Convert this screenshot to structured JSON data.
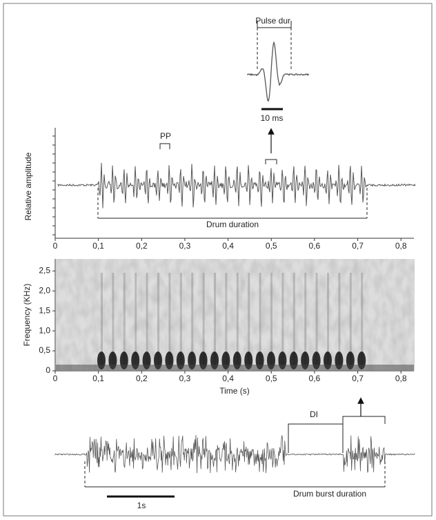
{
  "pulse": {
    "label": "Pulse dur.",
    "scale_label": "10 ms"
  },
  "waveform": {
    "y_label": "Relative amplitude",
    "pp_label": "PP",
    "duration_label": "Drum duration",
    "xlim": [
      0,
      0.83
    ],
    "xticks": [
      0,
      {
        "value": 0.1,
        "label": "0,1"
      },
      {
        "value": 0.2,
        "label": "0,2"
      },
      {
        "value": 0.3,
        "label": "0,3"
      },
      {
        "value": 0.4,
        "label": "0,4"
      },
      {
        "value": 0.5,
        "label": "0,5"
      },
      {
        "value": 0.6,
        "label": "0,6"
      },
      {
        "value": 0.7,
        "label": "0,7"
      },
      {
        "value": 0.8,
        "label": "0,8"
      }
    ]
  },
  "spectrogram": {
    "y_label": "Frequency (KHz)",
    "x_label": "Time (s)",
    "xlim": [
      0,
      0.83
    ],
    "ylim": [
      0,
      2.8
    ],
    "xticks": [
      0,
      {
        "value": 0.1,
        "label": "0,1"
      },
      {
        "value": 0.2,
        "label": "0,2"
      },
      {
        "value": 0.3,
        "label": "0,3"
      },
      {
        "value": 0.4,
        "label": "0,4"
      },
      {
        "value": 0.5,
        "label": "0,5"
      },
      {
        "value": 0.6,
        "label": "0,6"
      },
      {
        "value": 0.7,
        "label": "0,7"
      },
      {
        "value": 0.8,
        "label": "0,8"
      }
    ],
    "yticks": [
      0,
      {
        "value": 0.5,
        "label": "0,5"
      },
      {
        "value": 1.0,
        "label": "1,0"
      },
      {
        "value": 1.5,
        "label": "1,5"
      },
      {
        "value": 2.0,
        "label": "2,0"
      },
      {
        "value": 2.5,
        "label": "2,5"
      }
    ]
  },
  "burst": {
    "di_label": "DI",
    "duration_label": "Drum burst duration",
    "scale_label": "1s"
  }
}
